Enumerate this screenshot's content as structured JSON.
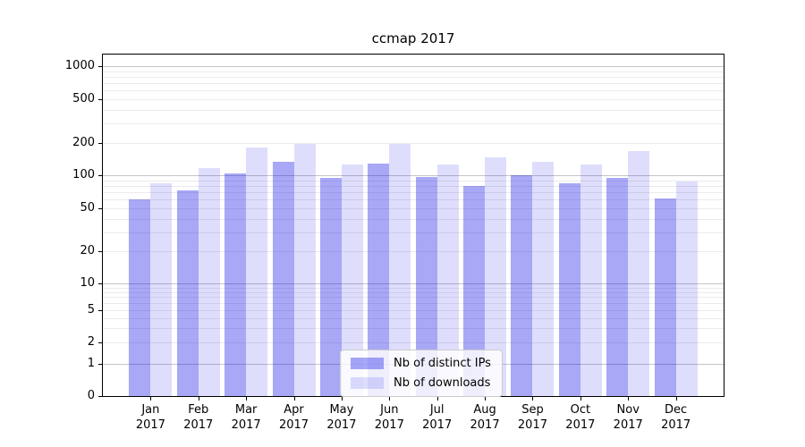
{
  "chart_data": {
    "type": "bar",
    "title": "ccmap 2017",
    "categories": [
      "Jan",
      "Feb",
      "Mar",
      "Apr",
      "May",
      "Jun",
      "Jul",
      "Aug",
      "Sep",
      "Oct",
      "Nov",
      "Dec"
    ],
    "year_label": "2017",
    "series": [
      {
        "name": "Nb of distinct IPs",
        "color": "rgba(0,0,230,0.34)",
        "values": [
          60,
          73,
          104,
          134,
          94,
          129,
          96,
          80,
          100,
          85,
          95,
          62
        ]
      },
      {
        "name": "Nb of downloads",
        "color": "rgba(0,0,230,0.13)",
        "values": [
          85,
          116,
          180,
          195,
          126,
          198,
          127,
          148,
          133,
          125,
          167,
          88
        ]
      }
    ],
    "xlabel": "",
    "ylabel": "",
    "yscale": "symlog",
    "yticks": [
      0,
      1,
      2,
      5,
      10,
      20,
      50,
      100,
      200,
      500,
      1000
    ],
    "ylim": [
      0,
      1300
    ],
    "grid": true,
    "legend_position": "lower center"
  },
  "colors": {
    "background": "#ffffff",
    "axis": "#000000",
    "major_grid": "#c6c6c6",
    "minor_grid": "#ebebeb",
    "legend_border": "#cccccc"
  }
}
